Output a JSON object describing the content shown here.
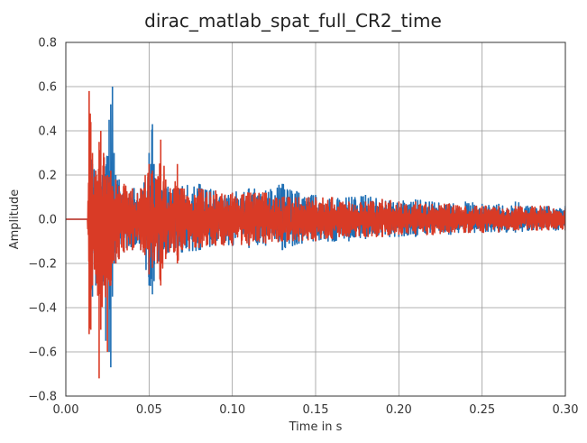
{
  "chart_data": {
    "type": "line",
    "title": "dirac_matlab_spat_full_CR2_time",
    "xlabel": "Time in s",
    "ylabel": "Amplitude",
    "xlim": [
      0.0,
      0.3
    ],
    "ylim": [
      -0.8,
      0.8
    ],
    "x_ticks": [
      "0.00",
      "0.05",
      "0.10",
      "0.15",
      "0.20",
      "0.25",
      "0.30"
    ],
    "y_ticks": [
      "0.8",
      "0.6",
      "0.4",
      "0.2",
      "0.0",
      "−0.2",
      "−0.4",
      "−0.6",
      "−0.8"
    ],
    "grid": true,
    "legend": "none",
    "series": [
      {
        "color": "#1f6fb4",
        "x": [
          0.0,
          0.014,
          0.015,
          0.016,
          0.018,
          0.02,
          0.022,
          0.024,
          0.026,
          0.027,
          0.028,
          0.029,
          0.03,
          0.032,
          0.035,
          0.04,
          0.045,
          0.05,
          0.052,
          0.053,
          0.055,
          0.06,
          0.065,
          0.07,
          0.08,
          0.09,
          0.1,
          0.11,
          0.12,
          0.13,
          0.14,
          0.15,
          0.16,
          0.17,
          0.18,
          0.19,
          0.2,
          0.21,
          0.22,
          0.23,
          0.24,
          0.25,
          0.26,
          0.27,
          0.28,
          0.29,
          0.3
        ],
        "upper": [
          0.0,
          0.0,
          0.35,
          0.25,
          0.22,
          0.18,
          0.2,
          0.24,
          0.45,
          0.52,
          0.6,
          0.3,
          0.2,
          0.18,
          0.15,
          0.14,
          0.14,
          0.3,
          0.43,
          0.25,
          0.18,
          0.15,
          0.14,
          0.15,
          0.16,
          0.13,
          0.12,
          0.14,
          0.13,
          0.16,
          0.12,
          0.11,
          0.1,
          0.1,
          0.11,
          0.09,
          0.08,
          0.09,
          0.08,
          0.07,
          0.08,
          0.07,
          0.07,
          0.08,
          0.06,
          0.06,
          0.06
        ],
        "lower": [
          0.0,
          0.0,
          -0.3,
          -0.35,
          -0.3,
          -0.25,
          -0.3,
          -0.55,
          -0.6,
          -0.67,
          -0.35,
          -0.2,
          -0.2,
          -0.17,
          -0.15,
          -0.14,
          -0.14,
          -0.3,
          -0.34,
          -0.28,
          -0.2,
          -0.16,
          -0.15,
          -0.15,
          -0.14,
          -0.12,
          -0.12,
          -0.13,
          -0.12,
          -0.14,
          -0.11,
          -0.1,
          -0.1,
          -0.1,
          -0.09,
          -0.08,
          -0.08,
          -0.08,
          -0.07,
          -0.07,
          -0.06,
          -0.06,
          -0.06,
          -0.06,
          -0.05,
          -0.05,
          -0.05
        ]
      },
      {
        "color": "#d93b26",
        "x": [
          0.0,
          0.013,
          0.014,
          0.015,
          0.016,
          0.018,
          0.02,
          0.021,
          0.023,
          0.025,
          0.027,
          0.028,
          0.03,
          0.032,
          0.035,
          0.04,
          0.045,
          0.05,
          0.052,
          0.055,
          0.057,
          0.06,
          0.065,
          0.067,
          0.07,
          0.08,
          0.09,
          0.1,
          0.11,
          0.12,
          0.13,
          0.14,
          0.15,
          0.16,
          0.17,
          0.18,
          0.19,
          0.2,
          0.21,
          0.22,
          0.23,
          0.24,
          0.25,
          0.26,
          0.27,
          0.28,
          0.29,
          0.3
        ],
        "upper": [
          0.0,
          0.0,
          0.58,
          0.44,
          0.3,
          0.22,
          0.35,
          0.4,
          0.28,
          0.2,
          0.22,
          0.15,
          0.18,
          0.15,
          0.16,
          0.14,
          0.14,
          0.25,
          0.22,
          0.18,
          0.36,
          0.18,
          0.14,
          0.25,
          0.14,
          0.14,
          0.13,
          0.12,
          0.12,
          0.12,
          0.1,
          0.1,
          0.1,
          0.1,
          0.08,
          0.08,
          0.09,
          0.08,
          0.08,
          0.07,
          0.07,
          0.06,
          0.06,
          0.06,
          0.06,
          0.06,
          0.06,
          0.05
        ],
        "lower": [
          0.0,
          0.0,
          -0.52,
          -0.5,
          -0.3,
          -0.25,
          -0.72,
          -0.5,
          -0.3,
          -0.6,
          -0.3,
          -0.2,
          -0.2,
          -0.18,
          -0.15,
          -0.14,
          -0.14,
          -0.25,
          -0.22,
          -0.2,
          -0.3,
          -0.18,
          -0.15,
          -0.2,
          -0.14,
          -0.13,
          -0.12,
          -0.12,
          -0.12,
          -0.11,
          -0.1,
          -0.1,
          -0.1,
          -0.09,
          -0.08,
          -0.08,
          -0.08,
          -0.07,
          -0.07,
          -0.07,
          -0.06,
          -0.06,
          -0.06,
          -0.06,
          -0.05,
          -0.05,
          -0.05,
          -0.05
        ]
      }
    ]
  }
}
